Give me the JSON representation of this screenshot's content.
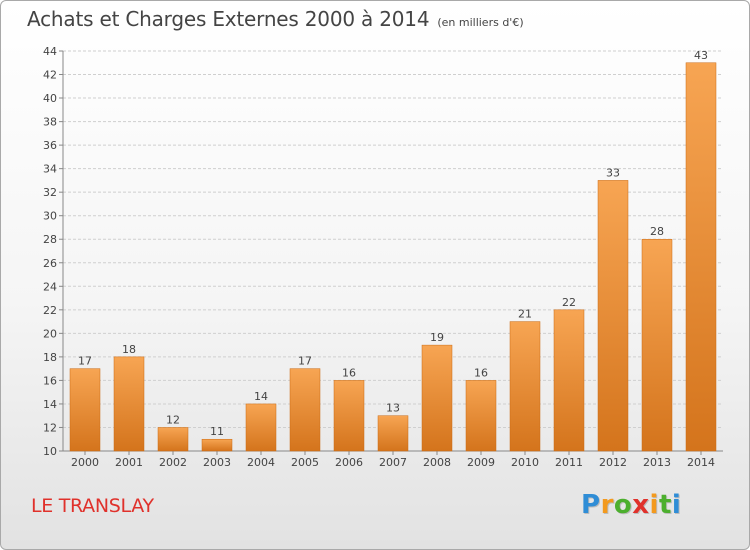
{
  "title": "Achats et Charges Externes 2000 à 2014",
  "subtitle": "(en milliers d'€)",
  "place_name": "LE TRANSLAY",
  "logo": {
    "letters": [
      "P",
      "r",
      "o",
      "x",
      "i",
      "t",
      "i"
    ],
    "colors": [
      "#2f8dd6",
      "#f39a1e",
      "#4caf2e",
      "#e0312b",
      "#f39a1e",
      "#4caf2e",
      "#2f8dd6"
    ]
  },
  "colors": {
    "bar_light": "#f7a553",
    "bar_dark": "#d4741c",
    "grid": "#cfcfcf",
    "text": "#444444"
  },
  "chart_data": {
    "type": "bar",
    "categories": [
      "2000",
      "2001",
      "2002",
      "2003",
      "2004",
      "2005",
      "2006",
      "2007",
      "2008",
      "2009",
      "2010",
      "2011",
      "2012",
      "2013",
      "2014"
    ],
    "values": [
      17,
      18,
      12,
      11,
      14,
      17,
      16,
      13,
      19,
      16,
      21,
      22,
      33,
      28,
      43
    ],
    "title": "Achats et Charges Externes 2000 à 2014",
    "subtitle": "(en milliers d'€)",
    "xlabel": "",
    "ylabel": "",
    "ylim": [
      10,
      44
    ],
    "yticks": [
      10,
      12,
      14,
      16,
      18,
      20,
      22,
      24,
      26,
      28,
      30,
      32,
      34,
      36,
      38,
      40,
      42,
      44
    ],
    "grid": true,
    "data_labels": true
  }
}
